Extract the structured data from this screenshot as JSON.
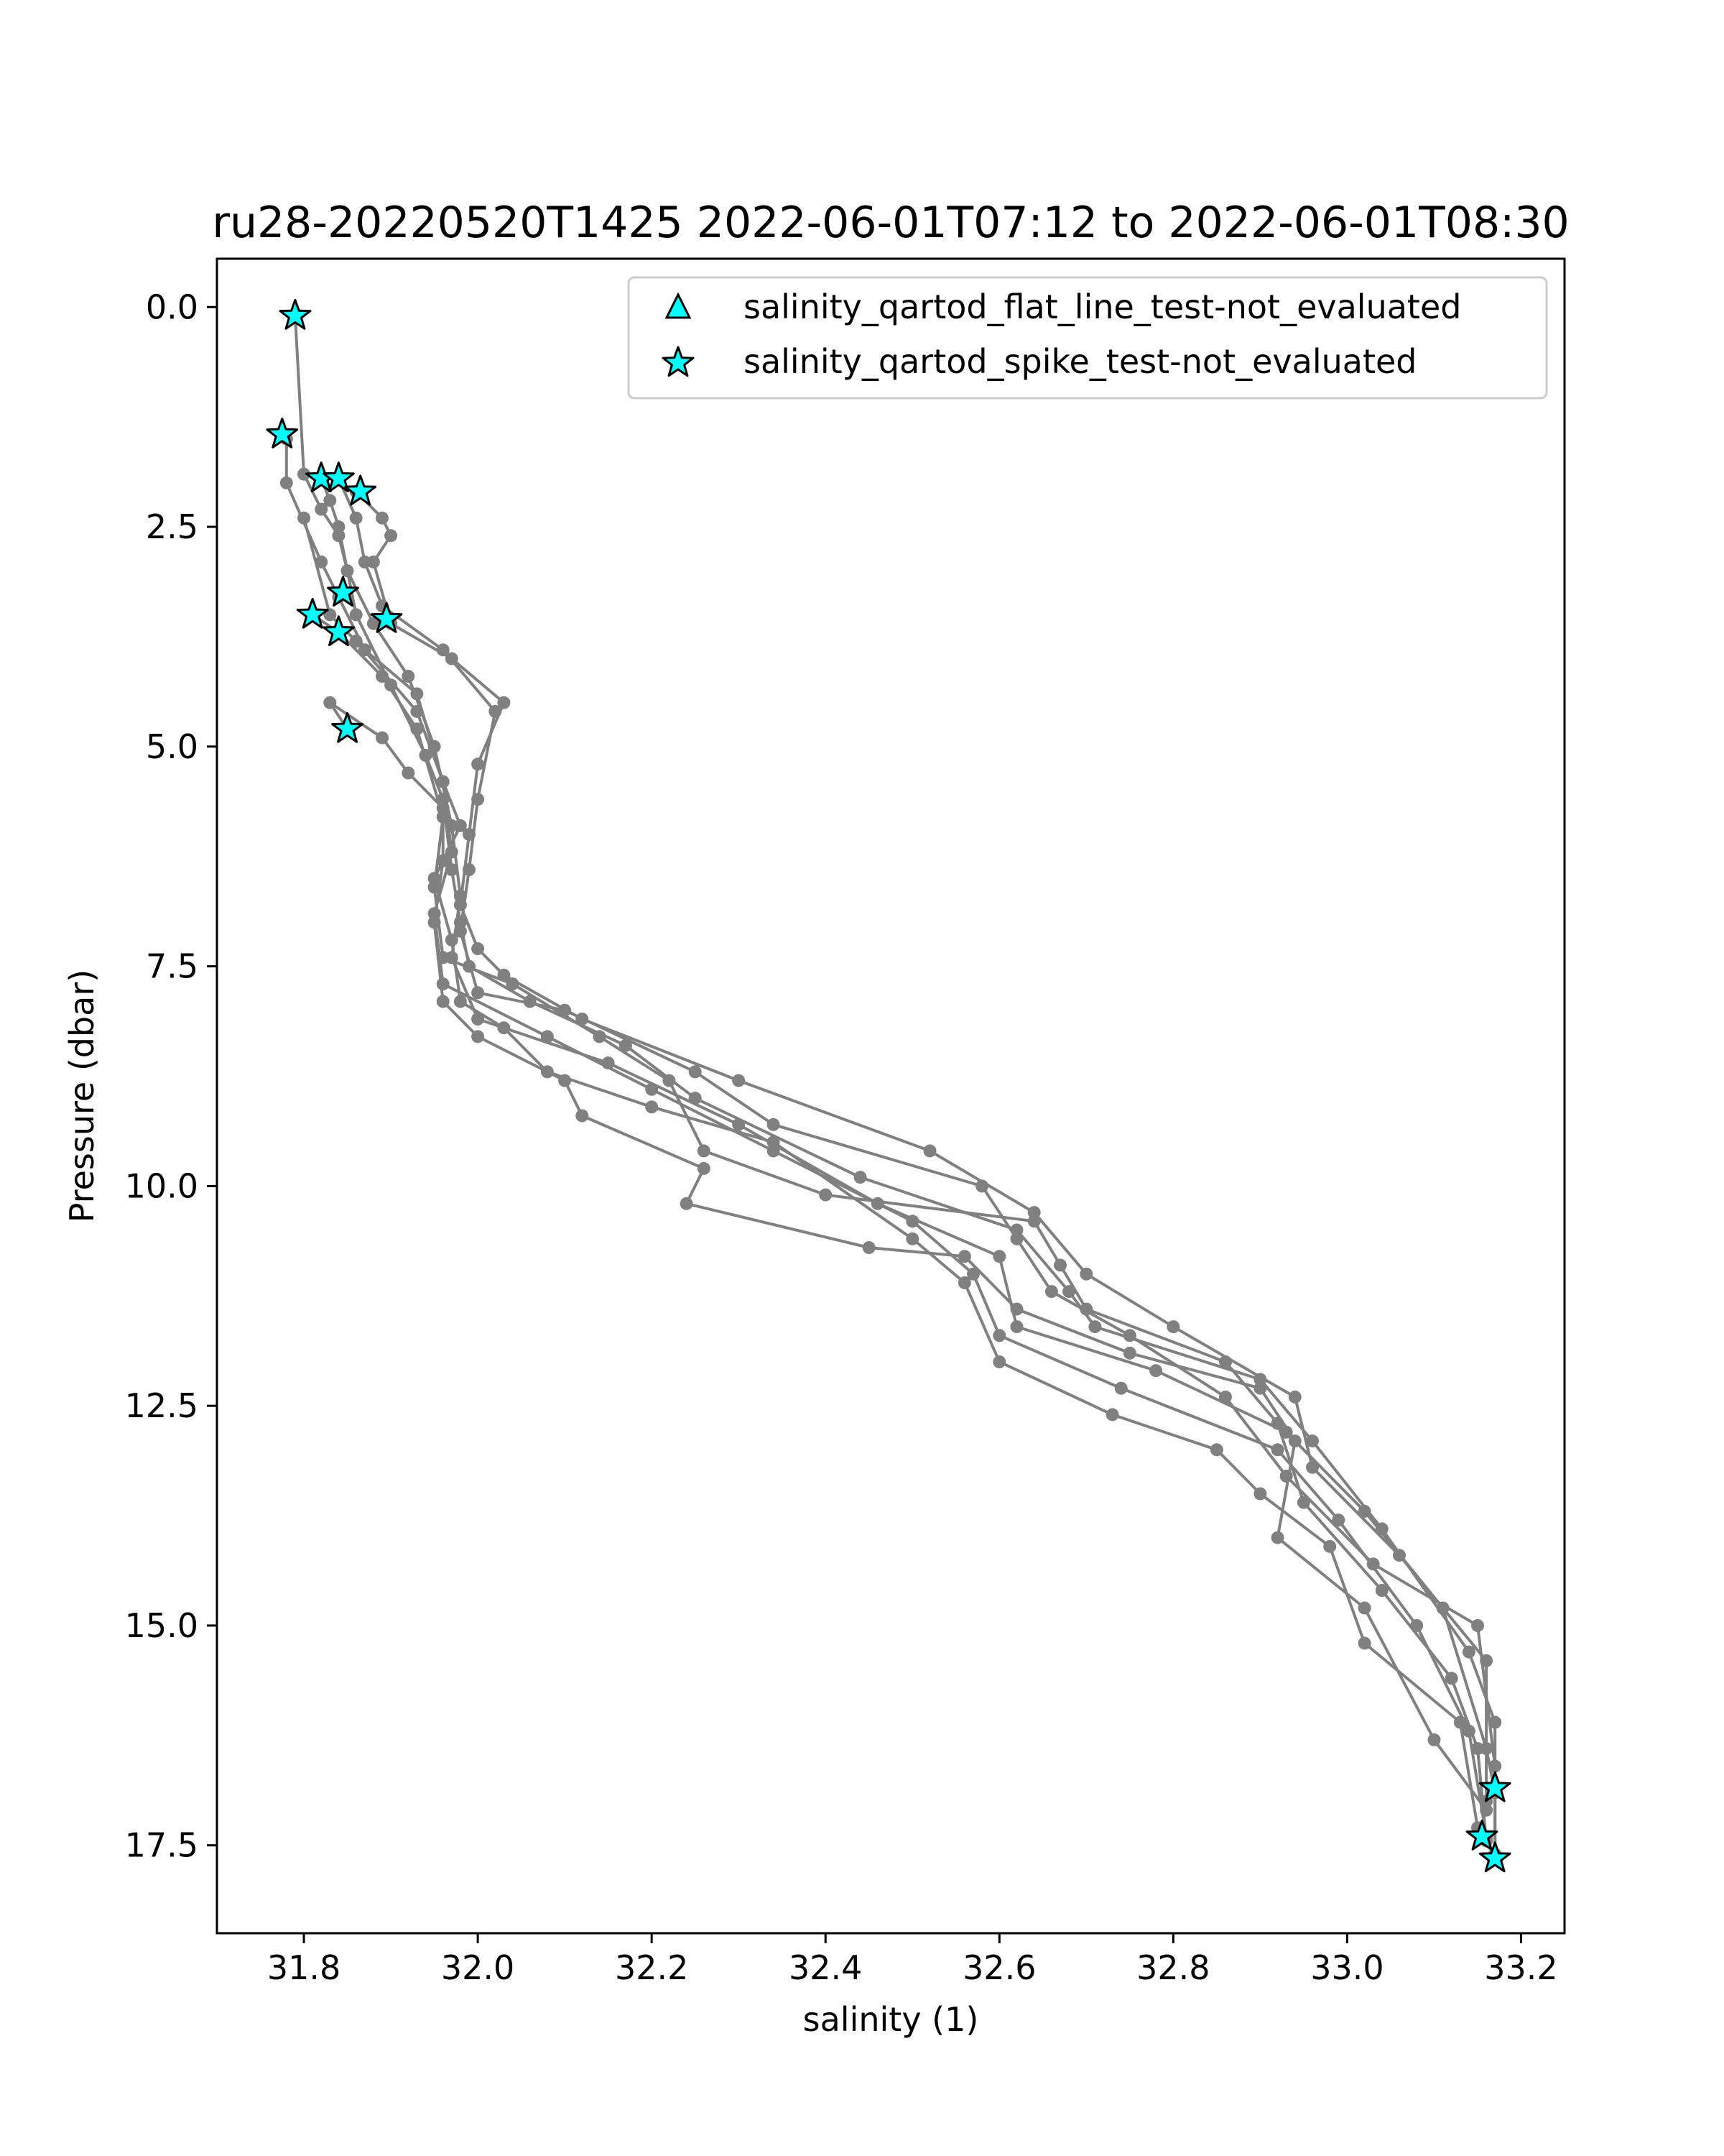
{
  "chart_data": {
    "type": "scatter",
    "title": "ru28-20220520T1425 2022-06-01T07:12 to 2022-06-01T08:30",
    "xlabel": "salinity (1)",
    "ylabel": "Pressure (dbar)",
    "xlim": [
      31.7,
      33.25
    ],
    "ylim": [
      18.5,
      -0.55
    ],
    "y_inverted": true,
    "xticks": [
      "31.8",
      "32.0",
      "32.2",
      "32.4",
      "32.6",
      "32.8",
      "33.0",
      "33.2"
    ],
    "yticks": [
      "0.0",
      "2.5",
      "5.0",
      "7.5",
      "10.0",
      "12.5",
      "15.0",
      "17.5"
    ],
    "grid": false,
    "legend_position": "top-right",
    "legend": [
      {
        "label": "salinity_qartod_flat_line_test-not_evaluated",
        "marker": "triangle",
        "color": "#00ffff"
      },
      {
        "label": "salinity_qartod_spike_test-not_evaluated",
        "marker": "star",
        "color": "#00ffff"
      }
    ],
    "colors": {
      "profile_line": "#808080",
      "flag_marker": "#00ffff",
      "marker_edge": "#000000"
    },
    "series": [
      {
        "values": [
          [
            31.79,
            0.1
          ],
          [
            31.8,
            1.9
          ],
          [
            31.82,
            2.3
          ],
          [
            31.84,
            2.6
          ],
          [
            31.85,
            3.0
          ],
          [
            31.88,
            3.6
          ],
          [
            31.92,
            4.2
          ],
          [
            31.95,
            5.0
          ],
          [
            31.97,
            5.9
          ],
          [
            31.98,
            6.7
          ],
          [
            31.97,
            7.4
          ],
          [
            32.0,
            8.1
          ],
          [
            32.15,
            8.6
          ],
          [
            32.3,
            9.3
          ],
          [
            32.46,
            10.2
          ],
          [
            32.6,
            10.8
          ],
          [
            32.62,
            11.6
          ],
          [
            32.78,
            12.1
          ],
          [
            32.93,
            12.8
          ],
          [
            33.02,
            13.7
          ],
          [
            33.11,
            14.8
          ],
          [
            33.16,
            16.4
          ],
          [
            33.17,
            16.9
          ]
        ]
      },
      {
        "values": [
          [
            31.78,
            1.5
          ],
          [
            31.78,
            2.0
          ],
          [
            31.82,
            2.9
          ],
          [
            31.84,
            3.3
          ],
          [
            31.87,
            3.9
          ],
          [
            31.93,
            4.4
          ],
          [
            31.96,
            5.4
          ],
          [
            31.97,
            6.2
          ],
          [
            31.95,
            6.9
          ],
          [
            31.96,
            7.7
          ],
          [
            32.08,
            8.3
          ],
          [
            32.2,
            8.9
          ],
          [
            32.34,
            9.6
          ],
          [
            32.5,
            10.4
          ],
          [
            32.57,
            11.0
          ],
          [
            32.6,
            11.7
          ],
          [
            32.74,
            12.3
          ],
          [
            32.92,
            13.0
          ],
          [
            32.99,
            13.8
          ],
          [
            33.08,
            15.0
          ],
          [
            33.14,
            16.2
          ],
          [
            33.16,
            17.4
          ]
        ]
      },
      {
        "values": [
          [
            31.82,
            1.95
          ],
          [
            31.83,
            2.2
          ],
          [
            31.84,
            2.5
          ],
          [
            31.86,
            3.5
          ],
          [
            31.9,
            4.3
          ],
          [
            31.94,
            5.1
          ],
          [
            31.96,
            5.6
          ],
          [
            31.97,
            6.4
          ],
          [
            31.98,
            7.0
          ],
          [
            31.99,
            7.5
          ],
          [
            32.06,
            7.9
          ],
          [
            32.17,
            8.4
          ],
          [
            32.25,
            9.0
          ],
          [
            32.44,
            9.9
          ],
          [
            32.62,
            10.5
          ],
          [
            32.68,
            11.2
          ],
          [
            32.71,
            11.6
          ],
          [
            32.9,
            12.2
          ],
          [
            32.96,
            12.9
          ],
          [
            33.04,
            13.9
          ],
          [
            33.14,
            15.3
          ],
          [
            33.17,
            16.1
          ],
          [
            33.17,
            17.6
          ]
        ]
      },
      {
        "values": [
          [
            31.84,
            1.95
          ],
          [
            31.86,
            2.4
          ],
          [
            31.87,
            2.9
          ],
          [
            31.89,
            3.4
          ],
          [
            31.96,
            3.9
          ],
          [
            32.02,
            4.6
          ],
          [
            32.0,
            5.6
          ],
          [
            31.99,
            6.4
          ],
          [
            31.98,
            7.1
          ],
          [
            32.0,
            7.8
          ],
          [
            32.1,
            8.0
          ],
          [
            32.25,
            8.7
          ],
          [
            32.34,
            9.3
          ],
          [
            32.58,
            10.0
          ],
          [
            32.62,
            10.6
          ],
          [
            32.66,
            11.2
          ],
          [
            32.75,
            11.7
          ],
          [
            32.86,
            12.4
          ],
          [
            32.93,
            13.3
          ],
          [
            33.03,
            14.3
          ],
          [
            33.15,
            15.0
          ],
          [
            33.17,
            16.6
          ],
          [
            33.17,
            17.6
          ]
        ]
      },
      {
        "values": [
          [
            31.86,
            2.1
          ],
          [
            31.89,
            2.4
          ],
          [
            31.9,
            2.6
          ],
          [
            31.88,
            2.9
          ],
          [
            31.9,
            3.6
          ],
          [
            31.97,
            4.0
          ],
          [
            32.03,
            4.5
          ],
          [
            32.0,
            5.2
          ],
          [
            31.99,
            6.0
          ],
          [
            31.98,
            6.8
          ],
          [
            32.0,
            7.3
          ],
          [
            32.03,
            7.6
          ],
          [
            32.12,
            8.1
          ],
          [
            32.3,
            8.8
          ],
          [
            32.52,
            9.6
          ],
          [
            32.64,
            10.3
          ],
          [
            32.7,
            11.0
          ],
          [
            32.8,
            11.6
          ],
          [
            32.94,
            12.4
          ],
          [
            32.96,
            13.2
          ],
          [
            33.06,
            14.2
          ],
          [
            33.16,
            15.4
          ],
          [
            33.16,
            17.0
          ]
        ]
      },
      {
        "values": [
          [
            31.8,
            2.4
          ],
          [
            31.83,
            3.5
          ],
          [
            31.86,
            3.8
          ],
          [
            31.93,
            4.6
          ],
          [
            31.96,
            5.4
          ],
          [
            31.98,
            5.9
          ],
          [
            31.95,
            6.5
          ],
          [
            31.97,
            7.2
          ],
          [
            31.98,
            7.9
          ],
          [
            32.03,
            8.2
          ],
          [
            32.08,
            8.7
          ],
          [
            32.2,
            9.1
          ],
          [
            32.34,
            9.5
          ],
          [
            32.5,
            10.6
          ],
          [
            32.56,
            11.1
          ],
          [
            32.6,
            12.0
          ],
          [
            32.73,
            12.6
          ],
          [
            32.85,
            13.0
          ],
          [
            32.9,
            13.5
          ],
          [
            32.98,
            14.1
          ],
          [
            33.02,
            15.2
          ],
          [
            33.13,
            16.1
          ],
          [
            33.15,
            17.3
          ]
        ]
      },
      {
        "values": [
          [
            31.81,
            3.5
          ],
          [
            31.84,
            3.7
          ],
          [
            31.89,
            4.2
          ],
          [
            31.93,
            4.8
          ],
          [
            31.96,
            5.8
          ],
          [
            31.95,
            6.6
          ],
          [
            31.96,
            7.4
          ],
          [
            32.04,
            7.7
          ],
          [
            32.14,
            8.3
          ],
          [
            32.22,
            8.8
          ],
          [
            32.26,
            9.6
          ],
          [
            32.4,
            10.1
          ],
          [
            32.64,
            10.4
          ],
          [
            32.67,
            10.9
          ],
          [
            32.7,
            11.4
          ],
          [
            32.86,
            12.0
          ],
          [
            32.92,
            12.7
          ],
          [
            32.95,
            13.6
          ],
          [
            33.04,
            14.6
          ],
          [
            33.12,
            15.6
          ],
          [
            33.15,
            16.4
          ],
          [
            33.16,
            17.45
          ]
        ]
      },
      {
        "values": [
          [
            31.85,
            4.8
          ],
          [
            31.83,
            4.5
          ],
          [
            31.89,
            4.9
          ],
          [
            31.92,
            5.3
          ],
          [
            31.96,
            5.7
          ],
          [
            31.96,
            6.3
          ],
          [
            31.95,
            7.0
          ],
          [
            31.96,
            7.9
          ],
          [
            32.0,
            8.3
          ],
          [
            32.1,
            8.8
          ],
          [
            32.12,
            9.2
          ],
          [
            32.26,
            9.8
          ],
          [
            32.24,
            10.2
          ],
          [
            32.45,
            10.7
          ],
          [
            32.56,
            10.8
          ],
          [
            32.62,
            11.4
          ],
          [
            32.75,
            11.9
          ],
          [
            32.9,
            12.3
          ],
          [
            32.94,
            12.9
          ],
          [
            32.92,
            14.0
          ],
          [
            33.02,
            14.8
          ],
          [
            33.1,
            16.3
          ],
          [
            33.16,
            17.1
          ]
        ]
      }
    ],
    "flagged_points": [
      {
        "marker": "star",
        "values": [
          [
            31.79,
            0.1
          ],
          [
            31.775,
            1.45
          ],
          [
            31.82,
            1.95
          ],
          [
            31.84,
            1.95
          ],
          [
            31.865,
            2.1
          ],
          [
            31.845,
            3.25
          ],
          [
            31.81,
            3.5
          ],
          [
            31.895,
            3.55
          ],
          [
            31.84,
            3.7
          ],
          [
            31.85,
            4.8
          ],
          [
            33.17,
            16.85
          ],
          [
            33.155,
            17.4
          ],
          [
            33.17,
            17.65
          ]
        ]
      }
    ]
  }
}
